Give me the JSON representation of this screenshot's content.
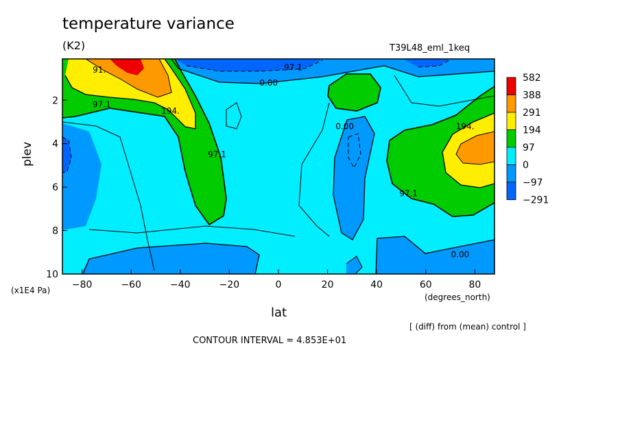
{
  "header": {
    "title": "temperature variance",
    "units": "(K2)",
    "run_name": "T39L48_eml_1keq",
    "diff_note": "[ (diff) from (mean) control ]",
    "contour_interval": "CONTOUR INTERVAL = 4.853E+01"
  },
  "chart_data": {
    "type": "heatmap",
    "title": "temperature variance",
    "subtitle": "(K2)",
    "xlabel": "lat",
    "xlabel_units": "(degrees_north)",
    "ylabel": "plev",
    "ylabel_units": "(x1E4 Pa)",
    "xlim": [
      -88,
      88
    ],
    "ylim": [
      10,
      0.1
    ],
    "x_ticks": [
      -80,
      -60,
      -40,
      -20,
      0,
      20,
      40,
      60,
      80
    ],
    "x_tick_labels": [
      "-80",
      "-60",
      "-40",
      "-20",
      "0",
      "20",
      "40",
      "60",
      "80"
    ],
    "y_ticks": [
      2,
      4,
      6,
      8,
      10
    ],
    "y_tick_labels": [
      "2",
      "4",
      "6",
      "8",
      "10"
    ],
    "levels": [
      -291,
      -97,
      0,
      97,
      194,
      291,
      388,
      582
    ],
    "colorbar": {
      "labels": [
        "582",
        "388",
        "291",
        "194",
        "97",
        "0",
        "-97",
        "-291"
      ],
      "colors": [
        "#ee0000",
        "#ff9900",
        "#ffee00",
        "#00cc00",
        "#00eeff",
        "#0099ff",
        "#0066ff"
      ],
      "placement": "right"
    },
    "contour_labels": [
      {
        "text": "91.",
        "lat": -73,
        "plev": 0.6
      },
      {
        "text": "97.1",
        "lat": -72,
        "plev": 2.2
      },
      {
        "text": "194.",
        "lat": -44,
        "plev": 2.5
      },
      {
        "text": "97.1",
        "lat": -25,
        "plev": 4.5
      },
      {
        "text": "97.1",
        "lat": 6,
        "plev": 0.5
      },
      {
        "text": "0.00",
        "lat": -4,
        "plev": 1.2
      },
      {
        "text": "0.00",
        "lat": 27,
        "plev": 3.2
      },
      {
        "text": "194.",
        "lat": 76,
        "plev": 3.2
      },
      {
        "text": "97.1",
        "lat": 53,
        "plev": 6.3
      },
      {
        "text": "0.00",
        "lat": 74,
        "plev": 9.1
      }
    ]
  }
}
